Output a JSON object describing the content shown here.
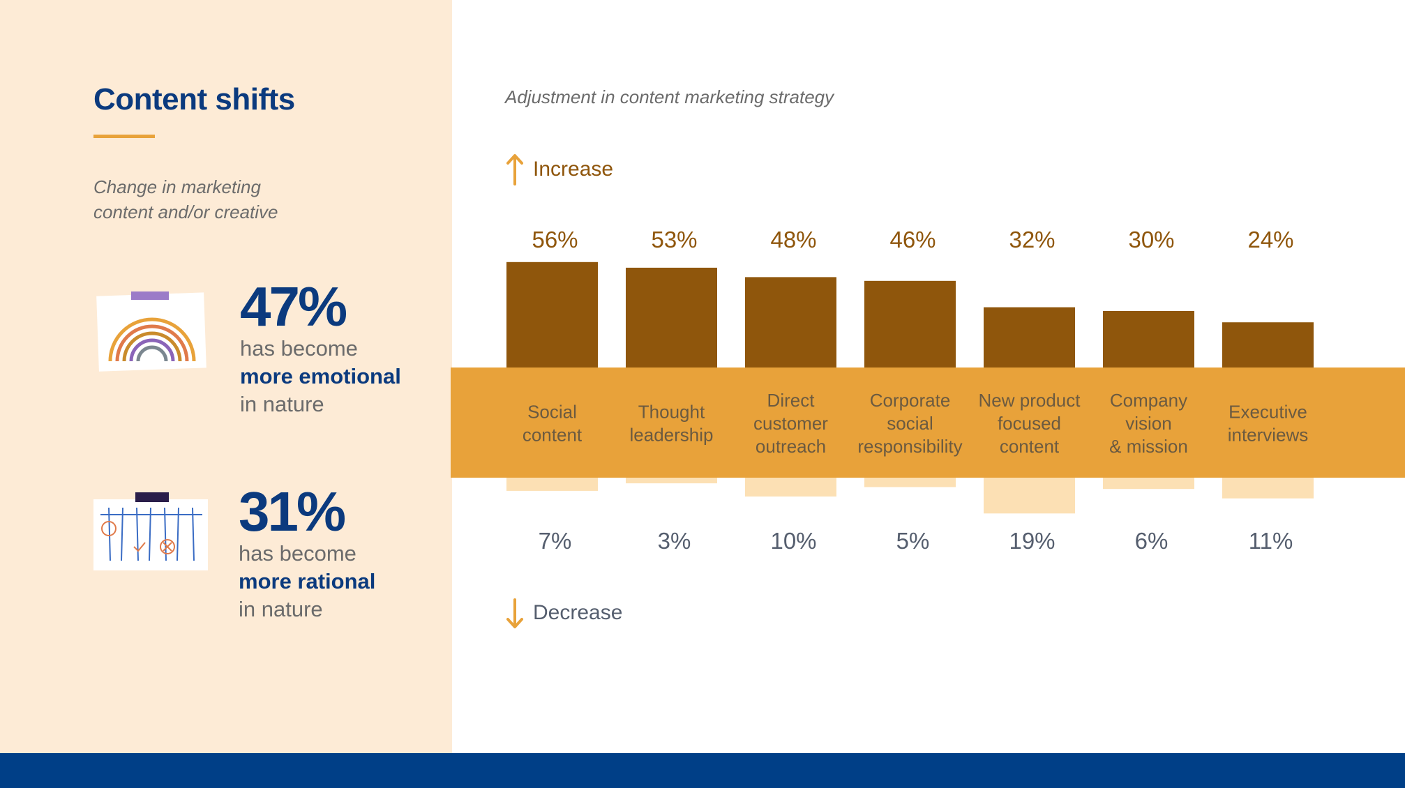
{
  "left": {
    "title": "Content shifts",
    "subtitle_line1": "Change in marketing",
    "subtitle_line2": "content and/or creative",
    "stats": [
      {
        "percent": "47%",
        "line1": "has become",
        "emphasis": "more emotional",
        "line3": "in nature",
        "icon": "rainbow-icon"
      },
      {
        "percent": "31%",
        "line1": "has become",
        "emphasis": "more rational",
        "line3": "in nature",
        "icon": "whiteboard-icon"
      }
    ]
  },
  "chart_title": "Adjustment in content marketing strategy",
  "increase_label": "Increase",
  "decrease_label": "Decrease",
  "colors": {
    "increase_bar": "#8f560c",
    "decrease_bar": "#fce0b4",
    "category_band": "#e8a23a",
    "left_panel": "#fdebd6",
    "footer": "#003f87",
    "navy": "#0b3a7e"
  },
  "chart_data": {
    "type": "bar",
    "categories": [
      [
        "Social",
        "content"
      ],
      [
        "Thought",
        "leadership"
      ],
      [
        "Direct",
        "customer",
        "outreach"
      ],
      [
        "Corporate",
        "social",
        "responsibility"
      ],
      [
        "New product",
        "focused",
        "content"
      ],
      [
        "Company",
        "vision",
        "& mission"
      ],
      [
        "Executive",
        "interviews"
      ]
    ],
    "series": [
      {
        "name": "Increase",
        "values": [
          56,
          53,
          48,
          46,
          32,
          30,
          24
        ],
        "labels": [
          "56%",
          "53%",
          "48%",
          "46%",
          "32%",
          "30%",
          "24%"
        ]
      },
      {
        "name": "Decrease",
        "values": [
          7,
          3,
          10,
          5,
          19,
          6,
          11
        ],
        "labels": [
          "7%",
          "3%",
          "10%",
          "5%",
          "19%",
          "6%",
          "11%"
        ]
      }
    ]
  }
}
